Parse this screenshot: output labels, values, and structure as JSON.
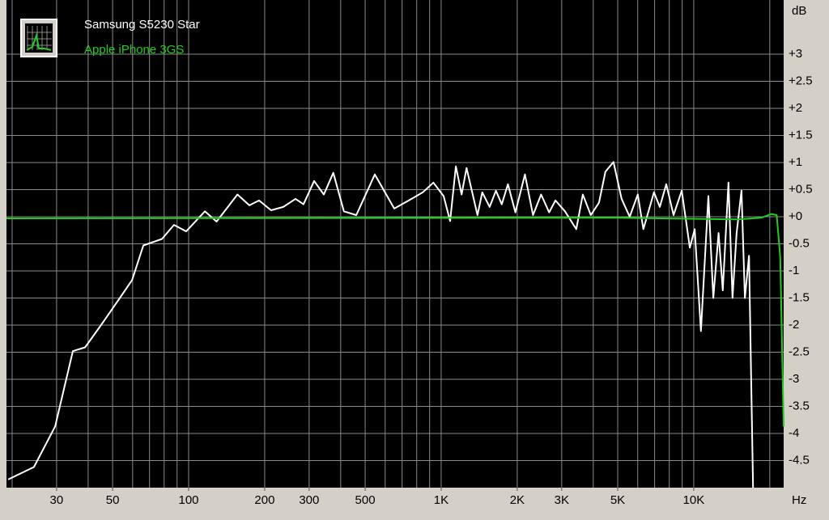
{
  "chart_data": {
    "type": "line",
    "xscale": "log",
    "xlim": [
      19,
      22700
    ],
    "ylim": [
      -5,
      4
    ],
    "x_label": "Hz",
    "y_label": "dB",
    "grid": true,
    "xticks": [
      30,
      50,
      100,
      200,
      300,
      500,
      {
        "value": 1000,
        "label": "1K"
      },
      {
        "value": 2000,
        "label": "2K"
      },
      {
        "value": 3000,
        "label": "3K"
      },
      {
        "value": 5000,
        "label": "5K"
      },
      {
        "value": 10000,
        "label": "10K"
      }
    ],
    "xgrid": [
      20,
      30,
      40,
      50,
      60,
      70,
      80,
      90,
      100,
      200,
      300,
      400,
      500,
      600,
      700,
      800,
      900,
      1000,
      2000,
      3000,
      4000,
      5000,
      6000,
      7000,
      8000,
      9000,
      10000,
      20000
    ],
    "yticks": [
      {
        "value": 3,
        "label": "+3"
      },
      {
        "value": 2.5,
        "label": "+2.5"
      },
      {
        "value": 2,
        "label": "+2"
      },
      {
        "value": 1.5,
        "label": "+1.5"
      },
      {
        "value": 1,
        "label": "+1"
      },
      {
        "value": 0.5,
        "label": "+0.5"
      },
      {
        "value": 0,
        "label": "+0"
      },
      -0.5,
      -1,
      -1.5,
      -2,
      -2.5,
      -3,
      -3.5,
      -4,
      -4.5
    ],
    "series": [
      {
        "name": "Samsung S5230 Star",
        "color": "#ffffff",
        "x": [
          19.3,
          24.4,
          29.6,
          34.8,
          38.9,
          45,
          53.4,
          59.7,
          66.2,
          78.4,
          87.5,
          97.8,
          116,
          129,
          156,
          174,
          190,
          212,
          237,
          265,
          285,
          314,
          343,
          374,
          412,
          461,
          546,
          652,
          744,
          846,
          931,
          1023,
          1085,
          1143,
          1205,
          1260,
          1392,
          1454,
          1555,
          1647,
          1737,
          1838,
          1967,
          2145,
          2310,
          2486,
          2676,
          2833,
          3092,
          3426,
          3636,
          3914,
          4214,
          4469,
          4810,
          5179,
          5576,
          6003,
          6318,
          6956,
          7337,
          7783,
          8322,
          8963,
          9650,
          10090,
          10680,
          11430,
          11950,
          12540,
          13030,
          13720,
          14240,
          14780,
          15450,
          15940,
          16550,
          17170
        ],
        "values": [
          -4.85,
          -4.62,
          -3.87,
          -2.48,
          -2.41,
          -2.0,
          -1.5,
          -1.17,
          -0.53,
          -0.41,
          -0.15,
          -0.27,
          0.1,
          -0.09,
          0.41,
          0.21,
          0.3,
          0.12,
          0.18,
          0.33,
          0.23,
          0.66,
          0.41,
          0.81,
          0.1,
          0.03,
          0.78,
          0.15,
          0.3,
          0.45,
          0.63,
          0.38,
          -0.08,
          0.93,
          0.41,
          0.9,
          0.03,
          0.45,
          0.18,
          0.48,
          0.23,
          0.6,
          0.08,
          0.78,
          0.03,
          0.41,
          0.08,
          0.3,
          0.1,
          -0.23,
          0.41,
          0.03,
          0.26,
          0.83,
          1.01,
          0.33,
          0,
          0.41,
          -0.23,
          0.45,
          0.18,
          0.6,
          0.03,
          0.48,
          -0.57,
          -0.23,
          -2.11,
          0.38,
          -1.5,
          -0.3,
          -1.36,
          0.63,
          -1.5,
          -0.3,
          0.48,
          -1.5,
          -0.72,
          -5
        ]
      },
      {
        "name": "Apple iPhone 3GS",
        "color": "#22cc22",
        "x": [
          19,
          5000,
          15000,
          18500,
          20300,
          21300,
          22000,
          22700
        ],
        "values": [
          -0.03,
          -0.02,
          -0.05,
          -0.02,
          0.05,
          0.03,
          -0.75,
          -3.87
        ]
      }
    ]
  }
}
